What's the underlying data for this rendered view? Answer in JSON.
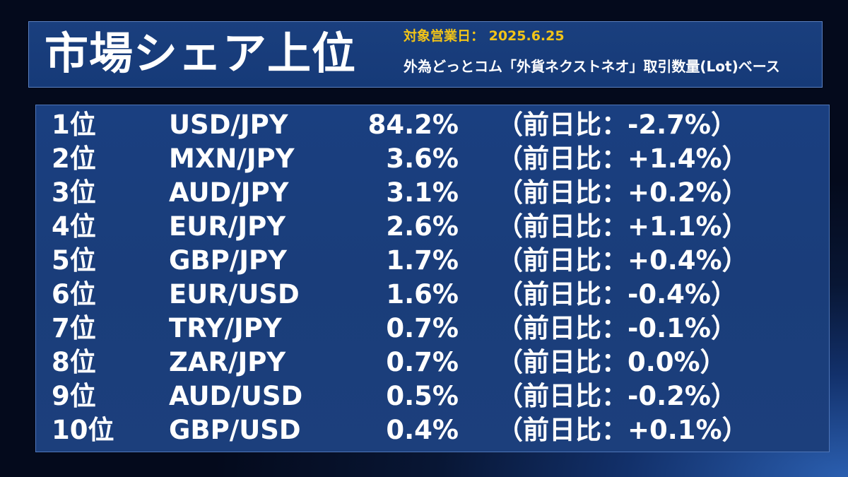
{
  "header": {
    "title": "市場シェア上位",
    "date_label": "対象営業日： 2025.6.25",
    "basis_label": "外為どっとコム「外貨ネクストネオ」取引数量(Lot)ベース"
  },
  "colors": {
    "background_dark": "#040a1c",
    "background_glow": "#2b5fb0",
    "panel": "#1a3f80",
    "date_accent": "#f2c418",
    "text": "#ffffff"
  },
  "rows": [
    {
      "rank": "1位",
      "pair": "USD/JPY",
      "share": "84.2%",
      "change": "（前日比：-2.7%）"
    },
    {
      "rank": "2位",
      "pair": "MXN/JPY",
      "share": "3.6%",
      "change": "（前日比：+1.4%）"
    },
    {
      "rank": "3位",
      "pair": "AUD/JPY",
      "share": "3.1%",
      "change": "（前日比：+0.2%）"
    },
    {
      "rank": "4位",
      "pair": "EUR/JPY",
      "share": "2.6%",
      "change": "（前日比：+1.1%）"
    },
    {
      "rank": "5位",
      "pair": "GBP/JPY",
      "share": "1.7%",
      "change": "（前日比：+0.4%）"
    },
    {
      "rank": "6位",
      "pair": "EUR/USD",
      "share": "1.6%",
      "change": "（前日比：-0.4%）"
    },
    {
      "rank": "7位",
      "pair": "TRY/JPY",
      "share": "0.7%",
      "change": "（前日比：-0.1%）"
    },
    {
      "rank": "8位",
      "pair": "ZAR/JPY",
      "share": "0.7%",
      "change": "（前日比：0.0%）"
    },
    {
      "rank": "9位",
      "pair": "AUD/USD",
      "share": "0.5%",
      "change": "（前日比：-0.2%）"
    },
    {
      "rank": "10位",
      "pair": "GBP/USD",
      "share": "0.4%",
      "change": "（前日比：+0.1%）"
    }
  ]
}
